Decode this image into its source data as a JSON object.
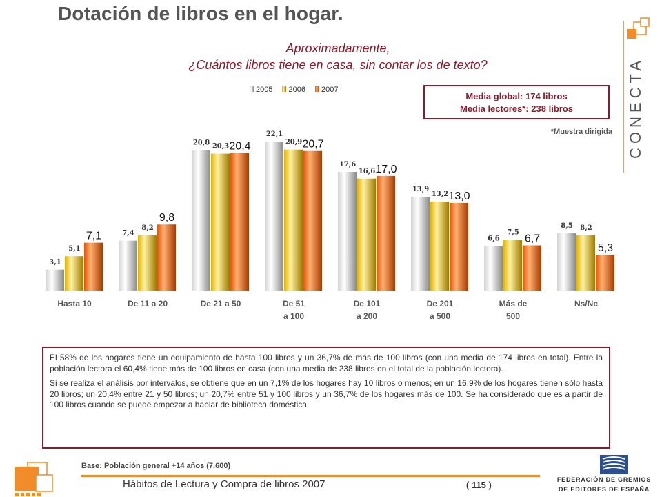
{
  "title": "Dotación de libros en el hogar.",
  "subtitle": {
    "line1": "Aproximadamente,",
    "line2": "¿Cuántos libros tiene en casa, sin contar los de texto?"
  },
  "brand": "CONECTA",
  "media_box": {
    "line1": "Media global: 174 libros",
    "line2": "Media lectores*: 238 libros"
  },
  "muestra_note": "*Muestra dirigida",
  "chart_data": {
    "type": "bar",
    "categories": [
      "Hasta 10",
      "De 11 a 20",
      "De 21 a 50",
      "De 51 a 100",
      "De 101 a 200",
      "De 201 a 500",
      "Más de 500",
      "Ns/Nc"
    ],
    "category_lines": [
      [
        "Hasta 10"
      ],
      [
        "De 11 a 20"
      ],
      [
        "De 21 a 50"
      ],
      [
        "De 51",
        "a 100"
      ],
      [
        "De 101",
        "a 200"
      ],
      [
        "De 201",
        "a 500"
      ],
      [
        "Más de",
        "500"
      ],
      [
        "Ns/Nc"
      ]
    ],
    "series": [
      {
        "name": "2005",
        "values": [
          3.1,
          7.4,
          20.8,
          22.1,
          17.6,
          13.9,
          6.6,
          8.5
        ],
        "labels": [
          "3,1",
          "7,4",
          "20,8",
          "22,1",
          "17,6",
          "13,9",
          "6,6",
          "8,5"
        ],
        "color": "#c8c8c8"
      },
      {
        "name": "2006",
        "values": [
          5.1,
          8.2,
          20.3,
          20.9,
          16.6,
          13.2,
          7.5,
          8.2
        ],
        "labels": [
          "5,1",
          "8,2",
          "20,3",
          "20,9",
          "16,6",
          "13,2",
          "7,5",
          "8,2"
        ],
        "color": "#e3b000"
      },
      {
        "name": "2007",
        "values": [
          7.1,
          9.8,
          20.4,
          20.7,
          17.0,
          13.0,
          6.7,
          5.3
        ],
        "labels": [
          "7,1",
          "9,8",
          "20,4",
          "20,7",
          "17,0",
          "13,0",
          "6,7",
          "5,3"
        ],
        "color": "#e0560a"
      }
    ],
    "ylim": [
      0,
      22.1
    ],
    "legend_position": "top",
    "grid": false
  },
  "text_box": {
    "p1": "El 58% de los hogares tiene un equipamiento de hasta 100 libros y un 36,7% de más de 100 libros (con una media de 174 libros en total). Entre la población lectora el 60,4% tiene más de 100 libros en casa (con una media de 238 libros en el total de la población lectora).",
    "p2": "Si se realiza el análisis por intervalos, se obtiene que en un 7,1% de los hogares hay 10 libros o menos; en un 16,9% de los hogares tienen sólo hasta 20 libros; un 20,4% entre 21 y 50 libros; un 20,7% entre 51 y 100 libros y un 36,7% de los hogares más de 100. Se ha considerado que es a partir de 100 libros cuando se puede empezar a hablar de biblioteca doméstica."
  },
  "base_note": "Base: Población general +14 años (7.600)",
  "footer_title": "Hábitos de Lectura y Compra de libros 2007",
  "page_number": "( 115 )",
  "federation": {
    "line1": "FEDERACIÓN DE GREMIOS",
    "line2": "DE EDITORES DE ESPAÑA"
  }
}
